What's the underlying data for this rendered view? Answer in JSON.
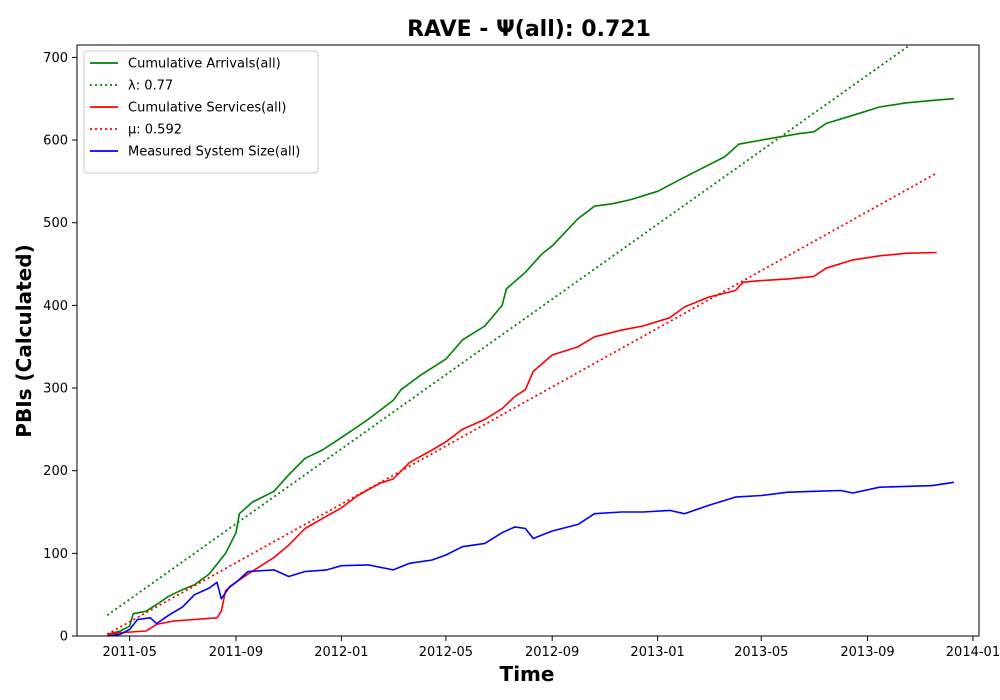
{
  "chart_data": {
    "type": "line",
    "title": "RAVE -  Ψ(all): 0.721",
    "xlabel": "Time",
    "ylabel": "PBIs (Calculated)",
    "x_axis": "date",
    "xlim": [
      "2011-03-01",
      "2014-01-08"
    ],
    "ylim": [
      0,
      715
    ],
    "xticks": [
      "2011-05-01",
      "2011-09-01",
      "2012-01-01",
      "2012-05-01",
      "2012-09-01",
      "2013-01-01",
      "2013-05-01",
      "2013-09-01",
      "2014-01-01"
    ],
    "xtick_labels": [
      "2011-05",
      "2011-09",
      "2012-01",
      "2012-05",
      "2012-09",
      "2013-01",
      "2013-05",
      "2013-09",
      "2014-01"
    ],
    "yticks": [
      0,
      100,
      200,
      300,
      400,
      500,
      600,
      700
    ],
    "ytick_labels": [
      "0",
      "100",
      "200",
      "300",
      "400",
      "500",
      "600",
      "700"
    ],
    "grid": false,
    "legend_placement": "top-left",
    "series": [
      {
        "name": "Cumulative Arrivals(all)",
        "style": "solid",
        "color": "#008000",
        "points": [
          [
            "2011-04-05",
            2
          ],
          [
            "2011-04-20",
            6
          ],
          [
            "2011-05-01",
            12
          ],
          [
            "2011-05-05",
            27
          ],
          [
            "2011-05-20",
            30
          ],
          [
            "2011-06-01",
            38
          ],
          [
            "2011-06-15",
            48
          ],
          [
            "2011-07-01",
            56
          ],
          [
            "2011-07-15",
            62
          ],
          [
            "2011-08-01",
            75
          ],
          [
            "2011-08-20",
            100
          ],
          [
            "2011-09-01",
            125
          ],
          [
            "2011-09-05",
            148
          ],
          [
            "2011-09-20",
            162
          ],
          [
            "2011-10-15",
            175
          ],
          [
            "2011-11-01",
            195
          ],
          [
            "2011-11-20",
            215
          ],
          [
            "2011-12-10",
            225
          ],
          [
            "2012-01-01",
            240
          ],
          [
            "2012-02-01",
            262
          ],
          [
            "2012-03-01",
            285
          ],
          [
            "2012-03-10",
            298
          ],
          [
            "2012-04-01",
            315
          ],
          [
            "2012-05-01",
            335
          ],
          [
            "2012-05-20",
            358
          ],
          [
            "2012-06-15",
            375
          ],
          [
            "2012-07-05",
            400
          ],
          [
            "2012-07-10",
            420
          ],
          [
            "2012-08-01",
            440
          ],
          [
            "2012-08-20",
            462
          ],
          [
            "2012-09-01",
            472
          ],
          [
            "2012-10-01",
            505
          ],
          [
            "2012-10-20",
            520
          ],
          [
            "2012-11-10",
            523
          ],
          [
            "2012-12-01",
            528
          ],
          [
            "2013-01-01",
            538
          ],
          [
            "2013-02-01",
            555
          ],
          [
            "2013-03-01",
            570
          ],
          [
            "2013-03-20",
            580
          ],
          [
            "2013-04-05",
            595
          ],
          [
            "2013-05-01",
            600
          ],
          [
            "2013-06-15",
            608
          ],
          [
            "2013-07-01",
            610
          ],
          [
            "2013-07-15",
            620
          ],
          [
            "2013-08-15",
            630
          ],
          [
            "2013-09-15",
            640
          ],
          [
            "2013-10-15",
            645
          ],
          [
            "2013-11-15",
            648
          ],
          [
            "2013-12-10",
            650
          ]
        ]
      },
      {
        "name": "λ: 0.77",
        "style": "dotted",
        "color": "#008000",
        "points": [
          [
            "2011-04-05",
            25
          ],
          [
            "2013-10-20",
            715
          ]
        ]
      },
      {
        "name": "Cumulative Services(all)",
        "style": "solid",
        "color": "#ff0000",
        "points": [
          [
            "2011-04-05",
            2
          ],
          [
            "2011-04-20",
            4
          ],
          [
            "2011-05-20",
            6
          ],
          [
            "2011-06-01",
            14
          ],
          [
            "2011-06-20",
            18
          ],
          [
            "2011-07-15",
            20
          ],
          [
            "2011-08-10",
            22
          ],
          [
            "2011-08-15",
            30
          ],
          [
            "2011-08-20",
            55
          ],
          [
            "2011-09-01",
            65
          ],
          [
            "2011-09-15",
            75
          ],
          [
            "2011-10-15",
            95
          ],
          [
            "2011-11-01",
            110
          ],
          [
            "2011-11-20",
            130
          ],
          [
            "2011-12-15",
            145
          ],
          [
            "2012-01-01",
            155
          ],
          [
            "2012-01-20",
            170
          ],
          [
            "2012-02-15",
            185
          ],
          [
            "2012-03-01",
            190
          ],
          [
            "2012-03-20",
            210
          ],
          [
            "2012-04-15",
            225
          ],
          [
            "2012-05-01",
            235
          ],
          [
            "2012-05-20",
            250
          ],
          [
            "2012-06-15",
            262
          ],
          [
            "2012-07-05",
            275
          ],
          [
            "2012-07-20",
            290
          ],
          [
            "2012-08-01",
            298
          ],
          [
            "2012-08-10",
            320
          ],
          [
            "2012-09-01",
            340
          ],
          [
            "2012-10-01",
            350
          ],
          [
            "2012-10-20",
            362
          ],
          [
            "2012-11-20",
            370
          ],
          [
            "2012-12-15",
            375
          ],
          [
            "2013-01-15",
            385
          ],
          [
            "2013-02-01",
            398
          ],
          [
            "2013-03-01",
            410
          ],
          [
            "2013-04-01",
            418
          ],
          [
            "2013-04-10",
            428
          ],
          [
            "2013-05-01",
            430
          ],
          [
            "2013-06-01",
            432
          ],
          [
            "2013-07-01",
            435
          ],
          [
            "2013-07-15",
            445
          ],
          [
            "2013-08-15",
            455
          ],
          [
            "2013-09-15",
            460
          ],
          [
            "2013-10-15",
            463
          ],
          [
            "2013-11-20",
            464
          ]
        ]
      },
      {
        "name": "μ: 0.592",
        "style": "dotted",
        "color": "#ff0000",
        "points": [
          [
            "2011-04-05",
            2
          ],
          [
            "2013-11-20",
            560
          ]
        ]
      },
      {
        "name": "Measured System Size(all)",
        "style": "solid",
        "color": "#0000ff",
        "points": [
          [
            "2011-04-05",
            0
          ],
          [
            "2011-04-20",
            2
          ],
          [
            "2011-05-01",
            8
          ],
          [
            "2011-05-10",
            20
          ],
          [
            "2011-05-25",
            22
          ],
          [
            "2011-06-01",
            15
          ],
          [
            "2011-06-15",
            25
          ],
          [
            "2011-07-01",
            35
          ],
          [
            "2011-07-15",
            50
          ],
          [
            "2011-08-01",
            58
          ],
          [
            "2011-08-10",
            65
          ],
          [
            "2011-08-15",
            45
          ],
          [
            "2011-08-25",
            60
          ],
          [
            "2011-09-01",
            65
          ],
          [
            "2011-09-15",
            78
          ],
          [
            "2011-10-15",
            80
          ],
          [
            "2011-11-01",
            72
          ],
          [
            "2011-11-20",
            78
          ],
          [
            "2011-12-15",
            80
          ],
          [
            "2012-01-01",
            85
          ],
          [
            "2012-02-01",
            86
          ],
          [
            "2012-03-01",
            80
          ],
          [
            "2012-03-20",
            88
          ],
          [
            "2012-04-15",
            92
          ],
          [
            "2012-05-01",
            98
          ],
          [
            "2012-05-20",
            108
          ],
          [
            "2012-06-15",
            112
          ],
          [
            "2012-07-05",
            125
          ],
          [
            "2012-07-20",
            132
          ],
          [
            "2012-08-01",
            130
          ],
          [
            "2012-08-10",
            118
          ],
          [
            "2012-09-01",
            127
          ],
          [
            "2012-10-01",
            135
          ],
          [
            "2012-10-20",
            148
          ],
          [
            "2012-11-20",
            150
          ],
          [
            "2012-12-15",
            150
          ],
          [
            "2013-01-15",
            152
          ],
          [
            "2013-02-01",
            148
          ],
          [
            "2013-03-01",
            158
          ],
          [
            "2013-04-01",
            168
          ],
          [
            "2013-05-01",
            170
          ],
          [
            "2013-06-01",
            174
          ],
          [
            "2013-07-01",
            175
          ],
          [
            "2013-08-01",
            176
          ],
          [
            "2013-08-15",
            173
          ],
          [
            "2013-09-15",
            180
          ],
          [
            "2013-10-15",
            181
          ],
          [
            "2013-11-15",
            182
          ],
          [
            "2013-12-10",
            186
          ]
        ]
      }
    ]
  }
}
